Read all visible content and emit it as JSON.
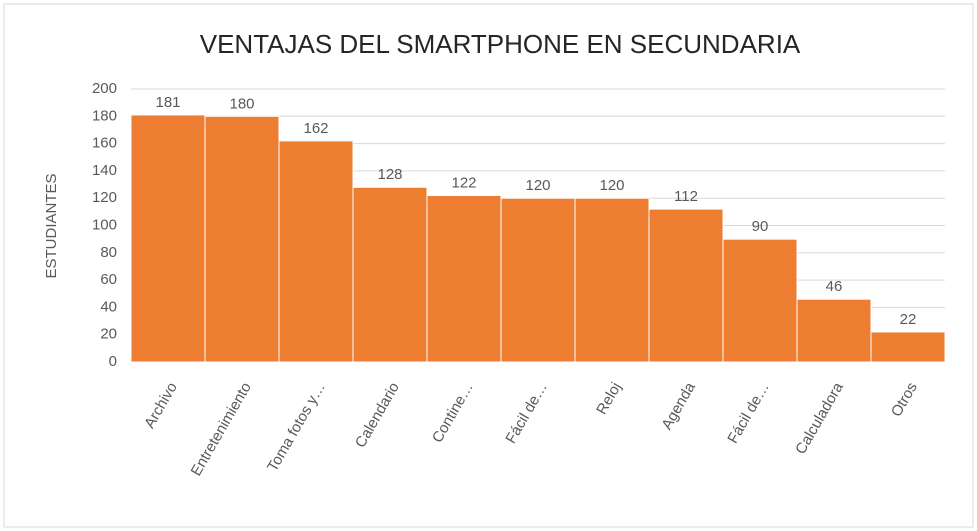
{
  "chart_data": {
    "type": "bar",
    "title": "VENTAJAS DEL SMARTPHONE EN SECUNDARIA",
    "y_label": "ESTUDIANTES",
    "categories": [
      "Archivo",
      "Entretenimiento",
      "Toma fotos y…",
      "Calendario",
      "Contine…",
      "Fácil de…",
      "Reloj",
      "Agenda",
      "Fácil de…",
      "Calculadora",
      "Otros"
    ],
    "values": [
      181,
      180,
      162,
      128,
      122,
      120,
      120,
      112,
      90,
      46,
      22
    ],
    "color": "#ed7d31",
    "ylim": [
      0,
      200
    ],
    "yticks": [
      0,
      20,
      40,
      60,
      80,
      100,
      120,
      140,
      160,
      180,
      200
    ],
    "grid": true
  }
}
